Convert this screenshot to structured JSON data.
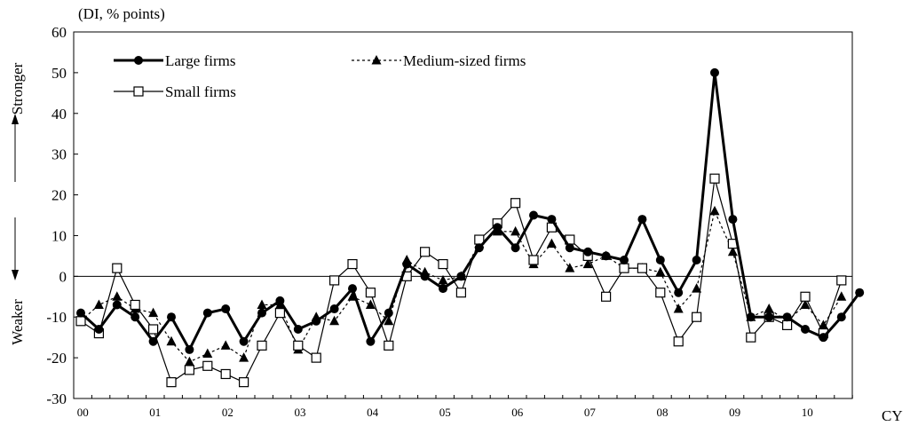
{
  "chart_data": {
    "type": "line",
    "unit_label": "(DI, % points)",
    "xlabel": "CY",
    "ylim": [
      -30,
      60
    ],
    "yticks": [
      -30,
      -20,
      -10,
      0,
      10,
      20,
      30,
      40,
      50,
      60
    ],
    "ytick_labels": [
      "-30",
      "-20",
      "-10",
      "0",
      "10",
      "20",
      "30",
      "40",
      "50",
      "60"
    ],
    "xtick_labels": [
      "00",
      "01",
      "02",
      "03",
      "04",
      "05",
      "06",
      "07",
      "08",
      "09",
      "10"
    ],
    "side_labels": {
      "top": "Stronger",
      "bottom": "Weaker"
    },
    "grid": false,
    "zero_line": true,
    "legend_position": "top-left",
    "series": [
      {
        "name": "Large firms",
        "color": "#000000",
        "marker": "circle",
        "values": [
          -9,
          -13,
          -7,
          -10,
          -16,
          -10,
          -18,
          -9,
          -8,
          -16,
          -9,
          -6,
          -13,
          -11,
          -8,
          -3,
          -16,
          -9,
          3,
          0,
          -3,
          0,
          7,
          12,
          7,
          15,
          14,
          7,
          6,
          5,
          4,
          14,
          4,
          -4,
          4,
          50,
          14,
          -10,
          -10,
          -10,
          -13,
          -15,
          -10,
          -4
        ]
      },
      {
        "name": "Medium-sized firms",
        "color": "#000000",
        "marker": "triangle",
        "values": [
          -11,
          -7,
          -5,
          -8,
          -9,
          -16,
          -21,
          -19,
          -17,
          -20,
          -7,
          -7,
          -18,
          -10,
          -11,
          -5,
          -7,
          -11,
          4,
          1,
          -1,
          0,
          8,
          11,
          11,
          3,
          8,
          2,
          3,
          5,
          2,
          2,
          1,
          -8,
          -3,
          16,
          6,
          -10,
          -8,
          -11,
          -7,
          -12,
          -5,
          null
        ]
      },
      {
        "name": "Small firms",
        "color": "#000000",
        "marker": "square",
        "values": [
          -11,
          -14,
          2,
          -7,
          -13,
          -26,
          -23,
          -22,
          -24,
          -26,
          -17,
          -9,
          -17,
          -20,
          -1,
          3,
          -4,
          -17,
          0,
          6,
          3,
          -4,
          9,
          13,
          18,
          4,
          12,
          9,
          5,
          -5,
          2,
          2,
          -4,
          -16,
          -10,
          24,
          8,
          -15,
          -10,
          -12,
          -5,
          -14,
          -1,
          null
        ]
      }
    ]
  }
}
